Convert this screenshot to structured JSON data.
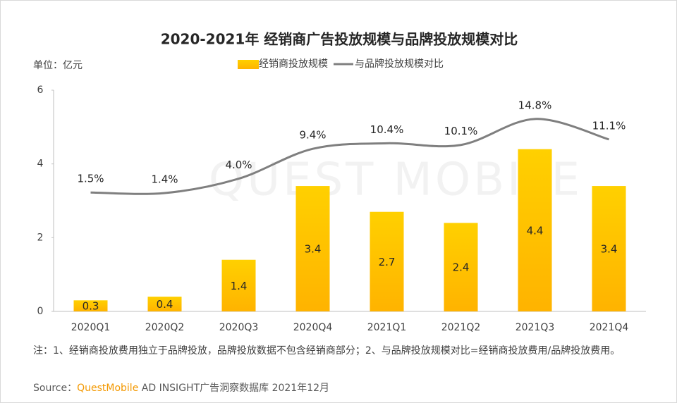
{
  "chart_data": {
    "type": "bar",
    "title": "2020-2021年 经销商广告投放规模与品牌投放规模对比",
    "unit": "单位：亿元",
    "watermark": "QUEST MOBILE",
    "categories": [
      "2020Q1",
      "2020Q2",
      "2020Q3",
      "2020Q4",
      "2021Q1",
      "2021Q2",
      "2021Q3",
      "2021Q4"
    ],
    "series": [
      {
        "name": "经销商投放规模",
        "type": "bar",
        "color": "#ffc000",
        "values": [
          0.3,
          0.4,
          1.4,
          3.4,
          2.7,
          2.4,
          4.4,
          3.4
        ]
      },
      {
        "name": "与品牌投放规模对比",
        "type": "line",
        "axis": "y2",
        "color": "#7f7f7f",
        "values": [
          1.5,
          1.4,
          4.0,
          9.4,
          10.4,
          10.1,
          14.8,
          11.1
        ],
        "value_labels": [
          "1.5%",
          "1.4%",
          "4.0%",
          "9.4%",
          "10.4%",
          "10.1%",
          "14.8%",
          "11.1%"
        ]
      }
    ],
    "ylim": [
      0,
      6
    ],
    "yticks": [
      0,
      2,
      4,
      6
    ],
    "y2lim": [
      -20,
      20
    ],
    "note": "注：1、经销商投放费用独立于品牌投放，品牌投放数据不包含经销商部分；2、与品牌投放规模对比=经销商投放费用/品牌投放费用。",
    "source": {
      "prefix": "Source：",
      "brand": "QuestMobile",
      "rest": " AD INSIGHT广告洞察数据库 2021年12月"
    }
  }
}
